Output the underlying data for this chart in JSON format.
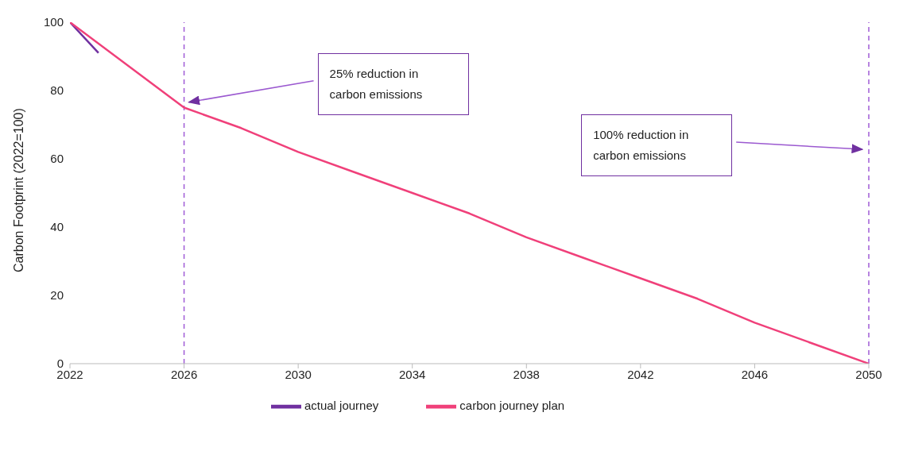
{
  "chart_data": {
    "type": "line",
    "ylabel": "Carbon Footprint (2022=100)",
    "xlim": [
      2022,
      2050
    ],
    "xticks": [
      2022,
      2026,
      2030,
      2034,
      2038,
      2042,
      2046,
      2050
    ],
    "ylim": [
      0,
      100
    ],
    "yticks": [
      0,
      20,
      40,
      60,
      80,
      100
    ],
    "grid": false,
    "legend": "bottom",
    "series": [
      {
        "name": "actual journey",
        "color": "#7030a0",
        "x": [
          2022,
          2023
        ],
        "values": [
          100,
          91
        ]
      },
      {
        "name": "carbon journey plan",
        "color": "#f0407a",
        "x": [
          2022,
          2026,
          2028,
          2030,
          2032,
          2034,
          2036,
          2038,
          2040,
          2042,
          2044,
          2046,
          2048,
          2050
        ],
        "values": [
          100,
          75,
          69,
          62,
          56,
          50,
          44,
          37,
          31,
          25,
          19,
          12,
          6,
          0
        ]
      }
    ],
    "ref_lines": [
      {
        "axis": "x",
        "value": 2026,
        "color": "#a05cd6",
        "line_style": "dashed"
      },
      {
        "axis": "x",
        "value": 2050,
        "color": "#a05cd6",
        "line_style": "dashed"
      }
    ],
    "annotations": [
      "25% reduction in carbon emissions",
      "100% reduction in carbon emissions"
    ]
  }
}
